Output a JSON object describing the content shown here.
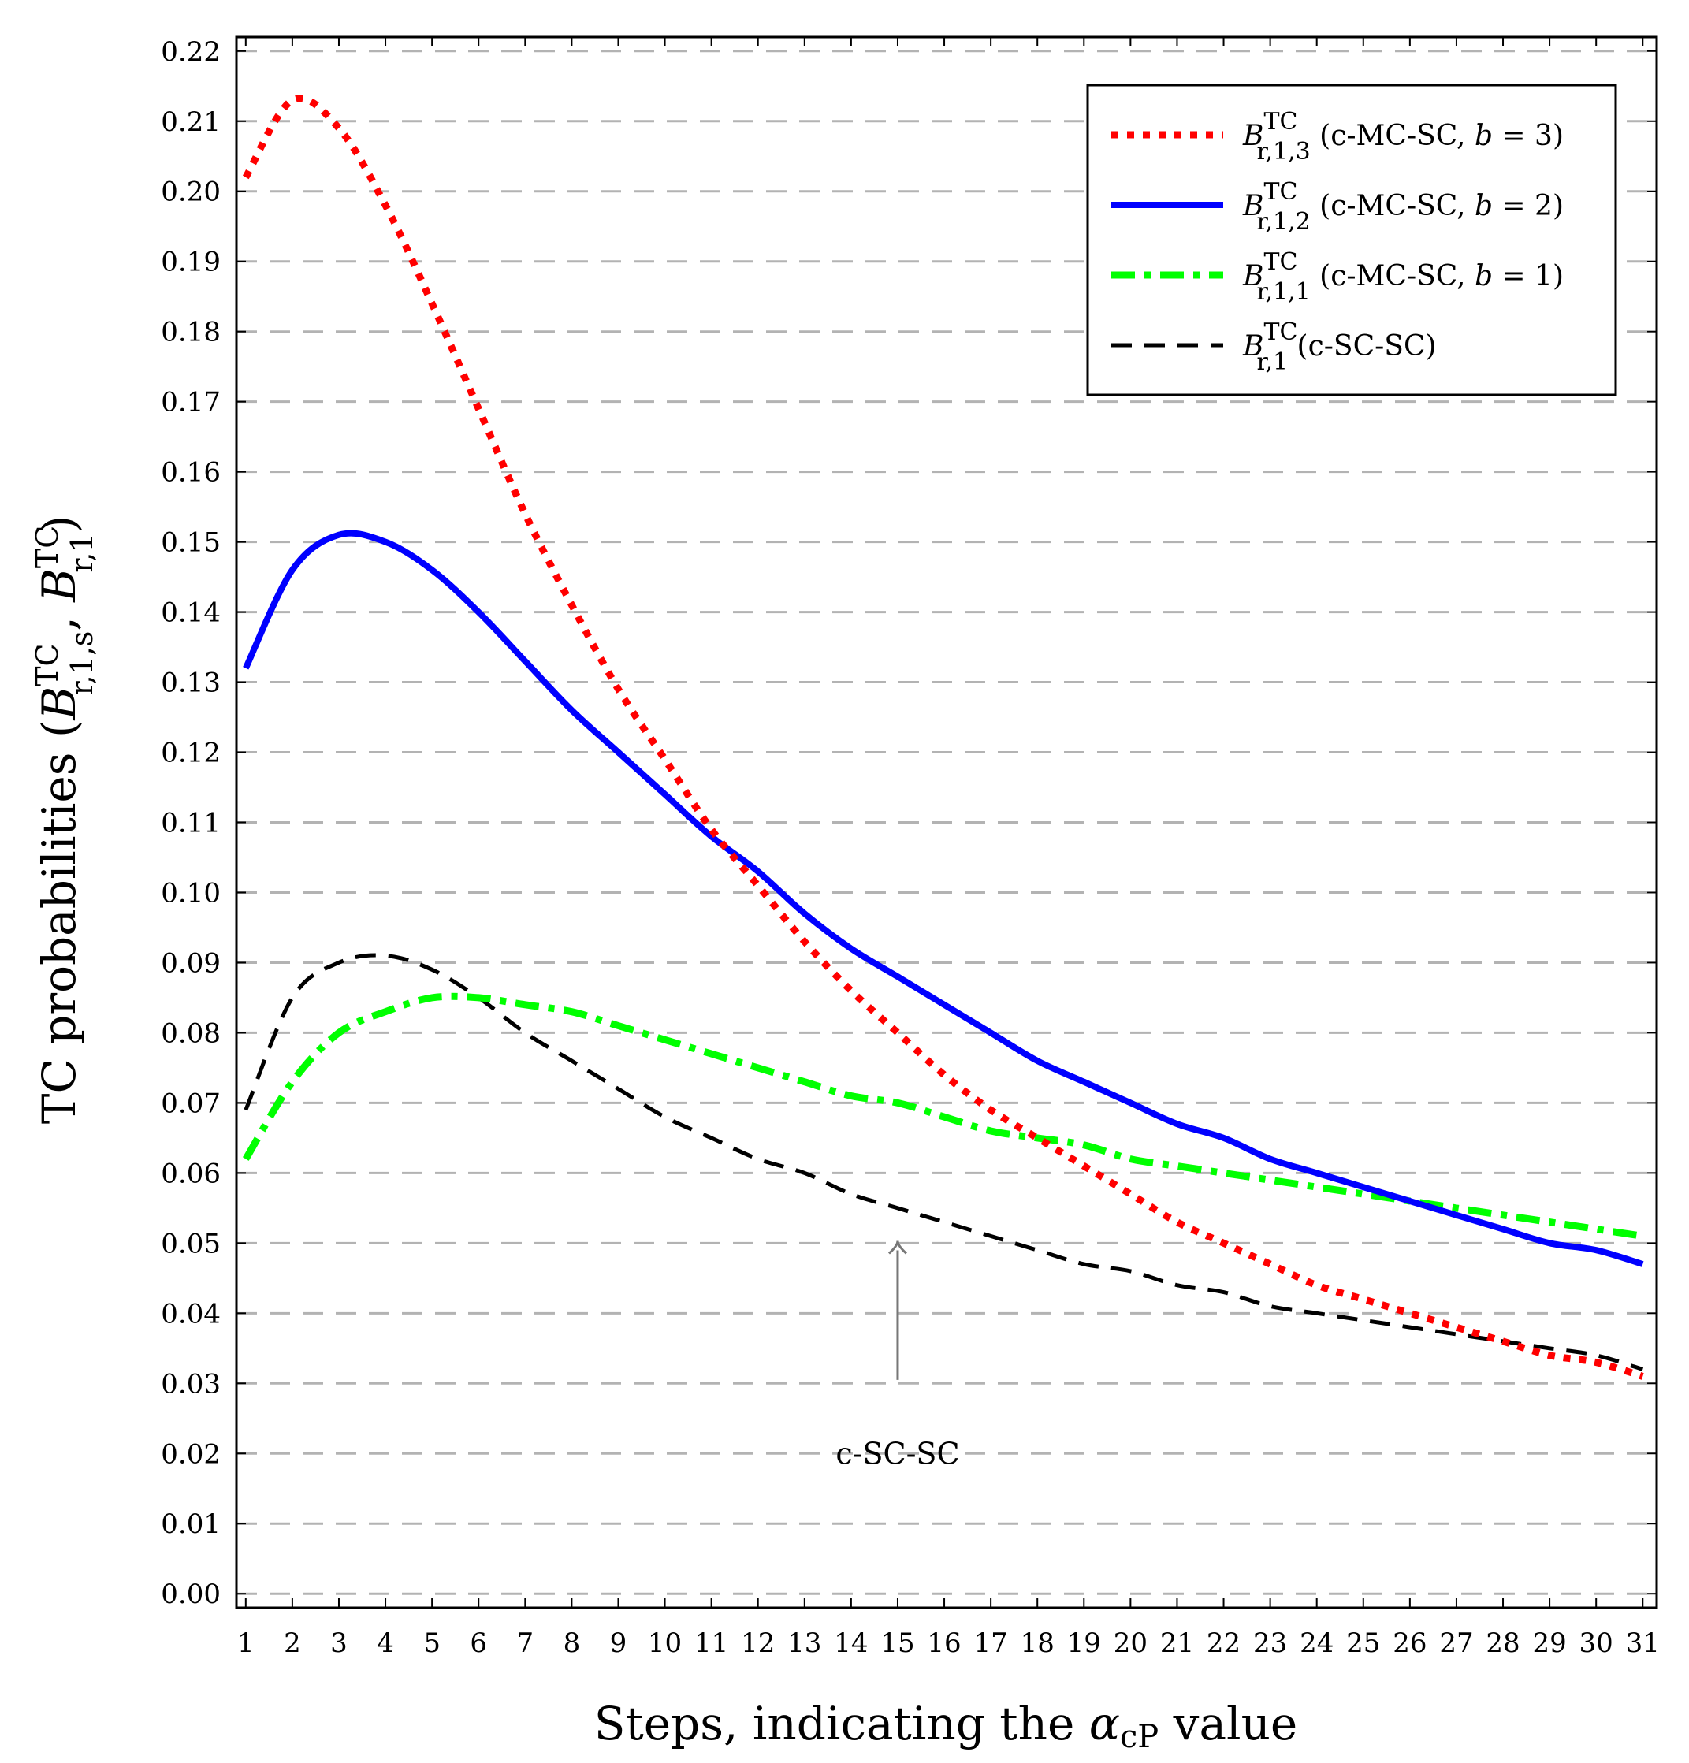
{
  "chart_data": {
    "type": "line",
    "title": "",
    "xlabel": "Steps, indicating the αcP value",
    "xlabel_main": "Steps, indicating the ",
    "xlabel_symbol": "α",
    "xlabel_subscript": "cP",
    "xlabel_tail": " value",
    "ylabel": "TC probabilities (B^TC_{r,1,s}, B^TC_{r,1})",
    "ylabel_main": "TC probabilities (",
    "ylabel_b1": "B",
    "ylabel_b1_sup": "TC",
    "ylabel_b1_sub": "r,1,s",
    "ylabel_sep": ", ",
    "ylabel_b2": "B",
    "ylabel_b2_sup": "TC",
    "ylabel_b2_sub": "r,1",
    "ylabel_close": ")",
    "xlim": [
      0.8,
      31.3
    ],
    "ylim": [
      -0.002,
      0.222
    ],
    "x_ticks": [
      1,
      2,
      3,
      4,
      5,
      6,
      7,
      8,
      9,
      10,
      11,
      12,
      13,
      14,
      15,
      16,
      17,
      18,
      19,
      20,
      21,
      22,
      23,
      24,
      25,
      26,
      27,
      28,
      29,
      30,
      31
    ],
    "y_ticks": [
      "0.00",
      "0.01",
      "0.02",
      "0.03",
      "0.04",
      "0.05",
      "0.06",
      "0.07",
      "0.08",
      "0.09",
      "0.10",
      "0.11",
      "0.12",
      "0.13",
      "0.14",
      "0.15",
      "0.16",
      "0.17",
      "0.18",
      "0.19",
      "0.20",
      "0.21",
      "0.22"
    ],
    "grid": "horizontal dashed",
    "legend_position": "top-right",
    "x": [
      1,
      2,
      3,
      4,
      5,
      6,
      7,
      8,
      9,
      10,
      11,
      12,
      13,
      14,
      15,
      16,
      17,
      18,
      19,
      20,
      21,
      22,
      23,
      24,
      25,
      26,
      27,
      28,
      29,
      30,
      31
    ],
    "series": [
      {
        "name": "B^TC_{r,1,3} (c-MC-SC, b = 3)",
        "legend_b": "B",
        "legend_sup": "TC",
        "legend_sub": "r,1,3",
        "legend_text": " (c-MC-SC, ",
        "legend_var": "b",
        "legend_eq": " = 3)",
        "color": "#ff0000",
        "style": "dotted",
        "values": [
          0.202,
          0.213,
          0.209,
          0.198,
          0.184,
          0.169,
          0.154,
          0.141,
          0.129,
          0.119,
          0.109,
          0.101,
          0.093,
          0.086,
          0.08,
          0.074,
          0.069,
          0.065,
          0.061,
          0.057,
          0.053,
          0.05,
          0.047,
          0.044,
          0.042,
          0.04,
          0.038,
          0.036,
          0.034,
          0.033,
          0.031
        ]
      },
      {
        "name": "B^TC_{r,1,2} (c-MC-SC, b = 2)",
        "legend_b": "B",
        "legend_sup": "TC",
        "legend_sub": "r,1,2",
        "legend_text": " (c-MC-SC, ",
        "legend_var": "b",
        "legend_eq": " = 2)",
        "color": "#0000ff",
        "style": "solid",
        "values": [
          0.132,
          0.146,
          0.151,
          0.15,
          0.146,
          0.14,
          0.133,
          0.126,
          0.12,
          0.114,
          0.108,
          0.103,
          0.097,
          0.092,
          0.088,
          0.084,
          0.08,
          0.076,
          0.073,
          0.07,
          0.067,
          0.065,
          0.062,
          0.06,
          0.058,
          0.056,
          0.054,
          0.052,
          0.05,
          0.049,
          0.047
        ]
      },
      {
        "name": "B^TC_{r,1,1} (c-MC-SC, b = 1)",
        "legend_b": "B",
        "legend_sup": "TC",
        "legend_sub": "r,1,1",
        "legend_text": " (c-MC-SC, ",
        "legend_var": "b",
        "legend_eq": " = 1)",
        "color": "#00ff00",
        "style": "dashdot",
        "values": [
          0.062,
          0.073,
          0.08,
          0.083,
          0.085,
          0.085,
          0.084,
          0.083,
          0.081,
          0.079,
          0.077,
          0.075,
          0.073,
          0.071,
          0.07,
          0.068,
          0.066,
          0.065,
          0.064,
          0.062,
          0.061,
          0.06,
          0.059,
          0.058,
          0.057,
          0.056,
          0.055,
          0.054,
          0.053,
          0.052,
          0.051
        ]
      },
      {
        "name": "B^TC_{r,1} (c-SC-SC)",
        "legend_b": "B",
        "legend_sup": "TC",
        "legend_sub": "r,1",
        "legend_text": " (c-SC-SC)",
        "legend_var": "",
        "legend_eq": "",
        "color": "#000000",
        "style": "dashed",
        "values": [
          0.069,
          0.085,
          0.09,
          0.091,
          0.089,
          0.085,
          0.08,
          0.076,
          0.072,
          0.068,
          0.065,
          0.062,
          0.06,
          0.057,
          0.055,
          0.053,
          0.051,
          0.049,
          0.047,
          0.046,
          0.044,
          0.043,
          0.041,
          0.04,
          0.039,
          0.038,
          0.037,
          0.036,
          0.035,
          0.034,
          0.032
        ]
      }
    ],
    "annotations": [
      {
        "text": "c-SC-SC",
        "arrow_to_x": 15,
        "arrow_to_y": 0.051
      }
    ]
  }
}
